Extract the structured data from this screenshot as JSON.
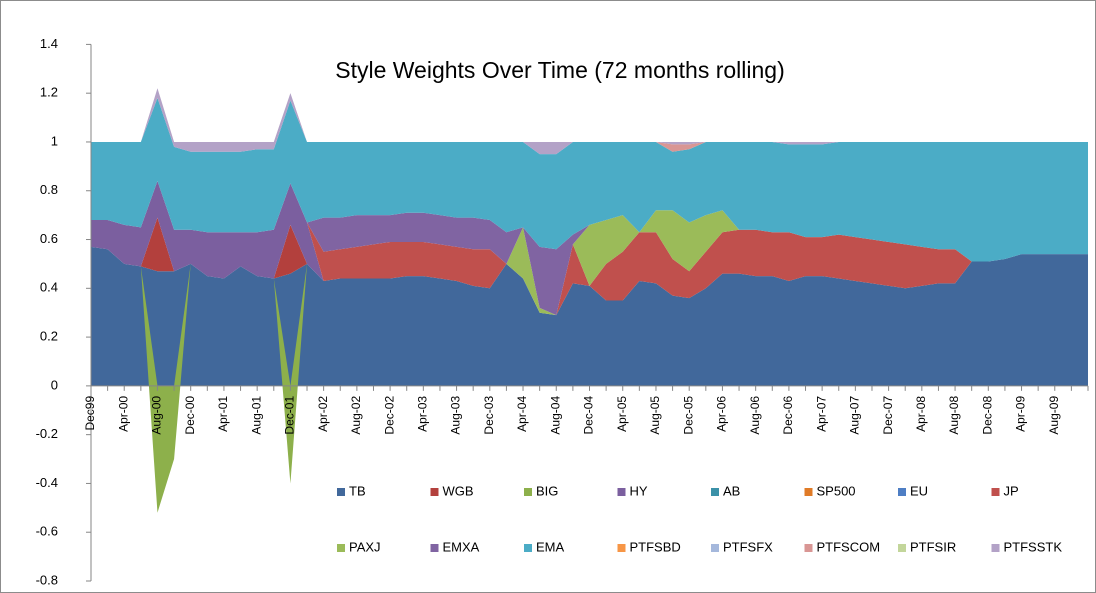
{
  "chart_data": {
    "type": "stacked_area",
    "title": "Style Weights Over Time (72 months rolling)",
    "categories": [
      "Dec99",
      null,
      "Apr-00",
      null,
      "Aug-00",
      null,
      "Dec-00",
      null,
      "Apr-01",
      null,
      "Aug-01",
      null,
      "Dec-01",
      null,
      "Apr-02",
      null,
      "Aug-02",
      null,
      "Dec-02",
      null,
      "Apr-03",
      null,
      "Aug-03",
      null,
      "Dec-03",
      null,
      "Apr-04",
      null,
      "Aug-04",
      null,
      "Dec-04",
      null,
      "Apr-05",
      null,
      "Aug-05",
      null,
      "Dec-05",
      null,
      "Apr-06",
      null,
      "Aug-06",
      null,
      "Dec-06",
      null,
      "Apr-07",
      null,
      "Aug-07",
      null,
      "Dec-07",
      null,
      "Apr-08",
      null,
      "Aug-08",
      null,
      "Dec-08",
      null,
      "Apr-09",
      null,
      "Aug-09",
      null,
      null
    ],
    "ylim": [
      -0.8,
      1.4
    ],
    "yticks": [
      -0.8,
      -0.6,
      -0.4,
      -0.2,
      0,
      0.2,
      0.4,
      0.6,
      0.8,
      1,
      1.2,
      1.4
    ],
    "legend": "bottom",
    "series": [
      {
        "name": "TB",
        "color": "#41689b",
        "values": [
          0.57,
          0.56,
          0.5,
          0.49,
          0.47,
          0.47,
          0.5,
          0.45,
          0.44,
          0.49,
          0.45,
          0.44,
          0.46,
          0.5,
          0.43,
          0.44,
          0.44,
          0.44,
          0.44,
          0.45,
          0.45,
          0.44,
          0.43,
          0.41,
          0.4,
          0.5,
          0.44,
          0.3,
          0.29,
          0.42,
          0.41,
          0.35,
          0.35,
          0.43,
          0.42,
          0.37,
          0.36,
          0.4,
          0.46,
          0.46,
          0.45,
          0.45,
          0.43,
          0.45,
          0.45,
          0.44,
          0.43,
          0.42,
          0.41,
          0.4,
          0.41,
          0.42,
          0.42,
          0.51,
          0.51,
          0.52,
          0.54,
          0.54,
          0.54,
          0.54,
          0.54
        ]
      },
      {
        "name": "WGB",
        "color": "#b3403d",
        "values": [
          0,
          0,
          0,
          0,
          0.22,
          0,
          0,
          0,
          0,
          0,
          0,
          0,
          0.2,
          0,
          0,
          0,
          0,
          0,
          0,
          0,
          0,
          0,
          0,
          0,
          0,
          0,
          0,
          0,
          0,
          0,
          0,
          0,
          0,
          0,
          0,
          0,
          0,
          0,
          0,
          0,
          0,
          0,
          0,
          0,
          0,
          0,
          0,
          0,
          0,
          0,
          0,
          0,
          0,
          0,
          0,
          0,
          0,
          0,
          0,
          0,
          0
        ]
      },
      {
        "name": "BIG",
        "color": "#8db04b",
        "values": [
          0,
          0,
          0,
          0,
          -0.52,
          -0.3,
          0,
          0,
          0,
          0,
          0,
          0,
          -0.4,
          0,
          0,
          0,
          0,
          0,
          0,
          0,
          0,
          0,
          0,
          0,
          0,
          0,
          0,
          0,
          0,
          0,
          0,
          0,
          0,
          0,
          0,
          0,
          0,
          0,
          0,
          0,
          0,
          0,
          0,
          0,
          0,
          0,
          0,
          0,
          0,
          0,
          0,
          0,
          0,
          0,
          0,
          0,
          0,
          0,
          0,
          0,
          0
        ]
      },
      {
        "name": "HY",
        "color": "#7b5f9f",
        "values": [
          0.11,
          0.12,
          0.16,
          0.16,
          0.15,
          0.17,
          0.14,
          0.18,
          0.19,
          0.14,
          0.18,
          0.2,
          0.17,
          0.17,
          0,
          0,
          0,
          0,
          0,
          0,
          0,
          0,
          0,
          0,
          0,
          0,
          0,
          0,
          0,
          0,
          0,
          0,
          0,
          0,
          0,
          0,
          0,
          0,
          0,
          0,
          0,
          0,
          0,
          0,
          0,
          0,
          0,
          0,
          0,
          0,
          0,
          0,
          0,
          0,
          0,
          0,
          0,
          0,
          0,
          0,
          0
        ]
      },
      {
        "name": "AB",
        "color": "#3b91a8",
        "values": [
          0,
          0,
          0,
          0,
          0,
          0,
          0,
          0,
          0,
          0,
          0,
          0,
          0,
          0,
          0,
          0,
          0,
          0,
          0,
          0,
          0,
          0,
          0,
          0,
          0,
          0,
          0,
          0,
          0,
          0,
          0,
          0,
          0,
          0,
          0,
          0,
          0,
          0,
          0,
          0,
          0,
          0,
          0,
          0,
          0,
          0,
          0,
          0,
          0,
          0,
          0,
          0,
          0,
          0,
          0,
          0,
          0,
          0,
          0,
          0,
          0
        ]
      },
      {
        "name": "SP500",
        "color": "#e07b27",
        "values": [
          0,
          0,
          0,
          0,
          0,
          0,
          0,
          0,
          0,
          0,
          0,
          0,
          0,
          0,
          0,
          0,
          0,
          0,
          0,
          0,
          0,
          0,
          0,
          0,
          0,
          0,
          0,
          0,
          0,
          0,
          0,
          0,
          0,
          0,
          0,
          0,
          0,
          0,
          0,
          0,
          0,
          0,
          0,
          0,
          0,
          0,
          0,
          0,
          0,
          0,
          0,
          0,
          0,
          0,
          0,
          0,
          0,
          0,
          0,
          0,
          0
        ]
      },
      {
        "name": "EU",
        "color": "#4e7ec4",
        "values": [
          0,
          0,
          0,
          0,
          0,
          0,
          0,
          0,
          0,
          0,
          0,
          0,
          0,
          0,
          0,
          0,
          0,
          0,
          0,
          0,
          0,
          0,
          0,
          0,
          0,
          0,
          0,
          0,
          0,
          0,
          0,
          0,
          0,
          0,
          0,
          0,
          0,
          0,
          0,
          0,
          0,
          0,
          0,
          0,
          0,
          0,
          0,
          0,
          0,
          0,
          0,
          0,
          0,
          0,
          0,
          0,
          0,
          0,
          0,
          0,
          0
        ]
      },
      {
        "name": "JP",
        "color": "#c0504d",
        "values": [
          0,
          0,
          0,
          0,
          0,
          0,
          0,
          0,
          0,
          0,
          0,
          0,
          0,
          0,
          0.12,
          0.12,
          0.13,
          0.14,
          0.15,
          0.14,
          0.14,
          0.14,
          0.14,
          0.15,
          0.16,
          0,
          0,
          0,
          0,
          0.16,
          0,
          0.15,
          0.2,
          0.2,
          0.21,
          0.15,
          0.11,
          0.15,
          0.17,
          0.18,
          0.19,
          0.18,
          0.2,
          0.16,
          0.16,
          0.18,
          0.18,
          0.18,
          0.18,
          0.18,
          0.16,
          0.14,
          0.14,
          0,
          0,
          0,
          0,
          0,
          0,
          0,
          0
        ]
      },
      {
        "name": "PAXJ",
        "color": "#9bbb59",
        "values": [
          0,
          0,
          0,
          0,
          0,
          0,
          0,
          0,
          0,
          0,
          0,
          0,
          0,
          0,
          0,
          0,
          0,
          0,
          0,
          0,
          0,
          0,
          0,
          0,
          0,
          0,
          0.21,
          0.02,
          0,
          0,
          0.25,
          0.18,
          0.15,
          0,
          0.09,
          0.2,
          0.2,
          0.15,
          0.09,
          0,
          0,
          0,
          0,
          0,
          0,
          0,
          0,
          0,
          0,
          0,
          0,
          0,
          0,
          0,
          0,
          0,
          0,
          0,
          0,
          0,
          0
        ]
      },
      {
        "name": "EMXA",
        "color": "#8064a2",
        "values": [
          0,
          0,
          0,
          0,
          0,
          0,
          0,
          0,
          0,
          0,
          0,
          0,
          0,
          0,
          0.14,
          0.13,
          0.13,
          0.12,
          0.11,
          0.12,
          0.12,
          0.12,
          0.12,
          0.13,
          0.12,
          0.13,
          0,
          0.25,
          0.27,
          0.04,
          0,
          0,
          0,
          0,
          0,
          0,
          0,
          0,
          0,
          0,
          0,
          0,
          0,
          0,
          0,
          0,
          0,
          0,
          0,
          0,
          0,
          0,
          0,
          0,
          0,
          0,
          0,
          0,
          0,
          0,
          0
        ]
      },
      {
        "name": "EMA",
        "color": "#4bacc6",
        "values": [
          0.32,
          0.32,
          0.34,
          0.35,
          0.34,
          0.34,
          0.32,
          0.33,
          0.33,
          0.33,
          0.34,
          0.33,
          0.34,
          0.33,
          0.31,
          0.31,
          0.3,
          0.3,
          0.3,
          0.29,
          0.29,
          0.3,
          0.31,
          0.31,
          0.32,
          0.37,
          0.35,
          0.38,
          0.39,
          0.38,
          0.34,
          0.32,
          0.3,
          0.37,
          0.28,
          0.24,
          0.3,
          0.3,
          0.28,
          0.36,
          0.36,
          0.37,
          0.36,
          0.38,
          0.38,
          0.38,
          0.39,
          0.4,
          0.41,
          0.42,
          0.43,
          0.44,
          0.44,
          0.49,
          0.49,
          0.48,
          0.46,
          0.46,
          0.46,
          0.46,
          0.46
        ]
      },
      {
        "name": "PTFSBD",
        "color": "#f79646",
        "values": [
          0,
          0,
          0,
          0,
          0,
          0,
          0,
          0,
          0,
          0,
          0,
          0,
          0,
          0,
          0,
          0,
          0,
          0,
          0,
          0,
          0,
          0,
          0,
          0,
          0,
          0,
          0,
          0,
          0,
          0,
          0,
          0,
          0,
          0,
          0,
          0,
          0,
          0,
          0,
          0,
          0,
          0,
          0,
          0,
          0,
          0,
          0,
          0,
          0,
          0,
          0,
          0,
          0,
          0,
          0,
          0,
          0,
          0,
          0,
          0,
          0
        ]
      },
      {
        "name": "PTFSFX",
        "color": "#a5b8dc",
        "values": [
          0,
          0,
          0,
          0,
          0,
          0,
          0,
          0,
          0,
          0,
          0,
          0,
          0,
          0,
          0,
          0,
          0,
          0,
          0,
          0,
          0,
          0,
          0,
          0,
          0,
          0,
          0,
          0,
          0,
          0,
          0,
          0,
          0,
          0,
          0,
          0,
          0,
          0,
          0,
          0,
          0,
          0,
          0,
          0,
          0,
          0,
          0,
          0,
          0,
          0,
          0,
          0,
          0,
          0,
          0,
          0,
          0,
          0,
          0,
          0,
          0
        ]
      },
      {
        "name": "PTFSCOM",
        "color": "#d99694",
        "values": [
          0,
          0,
          0,
          0,
          0,
          0,
          0,
          0,
          0,
          0,
          0,
          0,
          0,
          0,
          0,
          0,
          0,
          0,
          0,
          0,
          0,
          0,
          0,
          0,
          0,
          0,
          0,
          0,
          0,
          0,
          0,
          0,
          0,
          0,
          0,
          0.03,
          0.02,
          0,
          0,
          0,
          0,
          0,
          0,
          0,
          0,
          0,
          0,
          0,
          0,
          0,
          0,
          0,
          0,
          0,
          0,
          0,
          0,
          0,
          0,
          0,
          0
        ]
      },
      {
        "name": "PTFSIR",
        "color": "#c3d69b",
        "values": [
          0,
          0,
          0,
          0,
          0,
          0,
          0,
          0,
          0,
          0,
          0,
          0,
          0,
          0,
          0,
          0,
          0,
          0,
          0,
          0,
          0,
          0,
          0,
          0,
          0,
          0,
          0,
          0,
          0,
          0,
          0,
          0,
          0,
          0,
          0,
          0,
          0,
          0,
          0,
          0,
          0,
          0,
          0,
          0,
          0,
          0,
          0,
          0,
          0,
          0,
          0,
          0,
          0,
          0,
          0,
          0,
          0,
          0,
          0,
          0,
          0
        ]
      },
      {
        "name": "PTFSSTK",
        "color": "#b3a2c7",
        "values": [
          0,
          0,
          0,
          0,
          0.04,
          0.02,
          0.04,
          0.04,
          0.04,
          0.04,
          0.03,
          0.03,
          0.03,
          0,
          0,
          0,
          0,
          0,
          0,
          0,
          0,
          0,
          0,
          0,
          0,
          0,
          0,
          0.05,
          0.05,
          0,
          0,
          0,
          0,
          0,
          0,
          0.01,
          0.01,
          0,
          0,
          0,
          0,
          0,
          0.01,
          0.01,
          0.01,
          0,
          0,
          0,
          0,
          0,
          0,
          0,
          0,
          0,
          0,
          0,
          0,
          0,
          0,
          0,
          0
        ]
      }
    ]
  }
}
